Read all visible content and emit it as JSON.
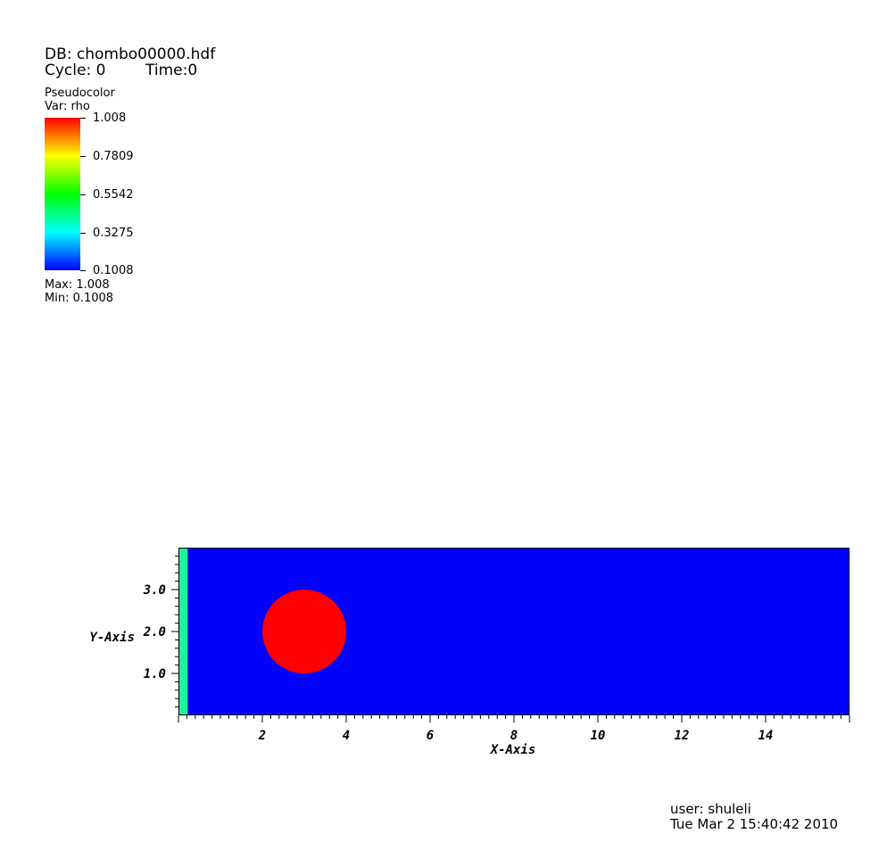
{
  "header": {
    "db_label": "DB: chombo00000.hdf",
    "cycle_label": "Cycle: 0",
    "time_label": "Time:0"
  },
  "legend": {
    "plot_type": "Pseudocolor",
    "var_label": "Var: rho",
    "ticks": [
      "1.008",
      "0.7809",
      "0.5542",
      "0.3275",
      "0.1008"
    ],
    "max_label": "Max:  1.008",
    "min_label": "Min:  0.1008",
    "colors": [
      "#0000ff",
      "#00ffff",
      "#00ff00",
      "#ffff00",
      "#ff0000"
    ]
  },
  "chart_data": {
    "type": "heatmap",
    "title": "",
    "xlabel": "X-Axis",
    "ylabel": "Y-Axis",
    "xlim": [
      0,
      16
    ],
    "ylim": [
      0,
      4
    ],
    "x_ticks": [
      2,
      4,
      6,
      8,
      10,
      12,
      14
    ],
    "x_tick_labels": [
      "2",
      "4",
      "6",
      "8",
      "10",
      "12",
      "14"
    ],
    "y_ticks": [
      1,
      2,
      3
    ],
    "y_tick_labels": [
      "1.0",
      "2.0",
      "3.0"
    ],
    "background_value": 0.1008,
    "background_color": "#0000ff",
    "regions": [
      {
        "shape": "strip",
        "x": [
          0,
          0.22
        ],
        "y": [
          0,
          4
        ],
        "color": "#1ef0a0"
      },
      {
        "shape": "circle",
        "cx": 3.0,
        "cy": 2.0,
        "r": 1.0,
        "value": 1.008,
        "color": "#ff0000"
      }
    ],
    "grid": false
  },
  "footer": {
    "user_label": "user: shuleli",
    "date_label": "Tue Mar  2 15:40:42 2010"
  }
}
